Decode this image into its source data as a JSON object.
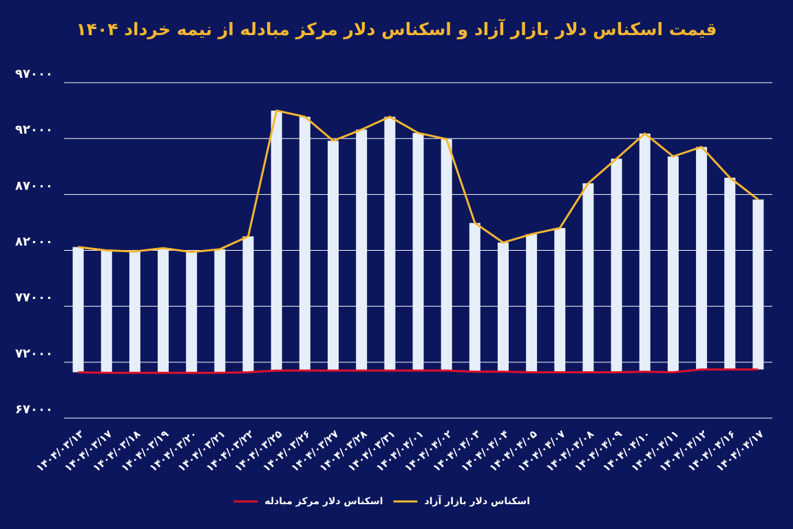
{
  "chart_data": {
    "type": "bar-line",
    "title": "قیمت اسکناس دلار بازار آزاد و اسکناس دلار مرکز مبادله از نیمه خرداد ۱۴۰۴",
    "categories": [
      "۱۴۰۴/۰۳/۱۳",
      "۱۴۰۴/۰۳/۱۷",
      "۱۴۰۴/۰۳/۱۸",
      "۱۴۰۴/۰۳/۱۹",
      "۱۴۰۴/۰۳/۲۰",
      "۱۴۰۴/۰۳/۲۱",
      "۱۴۰۴/۰۳/۲۲",
      "۱۴۰۴/۰۳/۲۵",
      "۱۴۰۴/۰۳/۲۶",
      "۱۴۰۴/۰۳/۲۷",
      "۱۴۰۴/۰۳/۲۸",
      "۱۴۰۴/۰۳/۳۱",
      "۱۴۰۴/۰۴/۰۱",
      "۱۴۰۴/۰۴/۰۲",
      "۱۴۰۴/۰۴/۰۳",
      "۱۴۰۴/۰۴/۰۴",
      "۱۴۰۴/۰۴/۰۵",
      "۱۴۰۴/۰۴/۰۷",
      "۱۴۰۴/۰۴/۰۸",
      "۱۴۰۴/۰۴/۰۹",
      "۱۴۰۴/۰۴/۱۰",
      "۱۴۰۴/۰۴/۱۱",
      "۱۴۰۴/۰۴/۱۲",
      "۱۴۰۴/۰۴/۱۶",
      "۱۴۰۴/۰۴/۱۷"
    ],
    "series": [
      {
        "name": "اسکناس دلار بازار آزاد",
        "color": "#f5b630",
        "bar_color": "#e6eefa",
        "values": [
          82300,
          82000,
          81900,
          82200,
          81850,
          82100,
          83250,
          94500,
          93950,
          91800,
          92800,
          93950,
          92500,
          91950,
          84450,
          82700,
          83450,
          84000,
          88000,
          90200,
          92450,
          90400,
          91250,
          88500,
          86550
        ]
      },
      {
        "name": "اسکناس دلار مرکز مبادله",
        "color": "#e0102a",
        "values": [
          71100,
          71050,
          71050,
          71050,
          71050,
          71050,
          71100,
          71250,
          71250,
          71250,
          71250,
          71250,
          71250,
          71250,
          71150,
          71150,
          71100,
          71100,
          71100,
          71100,
          71150,
          71100,
          71350,
          71350,
          71350
        ]
      }
    ],
    "ylim": [
      67000,
      97000
    ],
    "yticks": [
      {
        "value": 67000,
        "label": "۶۷۰۰۰"
      },
      {
        "value": 72000,
        "label": "۷۲۰۰۰"
      },
      {
        "value": 77000,
        "label": "۷۷۰۰۰"
      },
      {
        "value": 82000,
        "label": "۸۲۰۰۰"
      },
      {
        "value": 87000,
        "label": "۸۷۰۰۰"
      },
      {
        "value": 92000,
        "label": "۹۲۰۰۰"
      },
      {
        "value": 97000,
        "label": "۹۷۰۰۰"
      }
    ],
    "grid": true
  }
}
